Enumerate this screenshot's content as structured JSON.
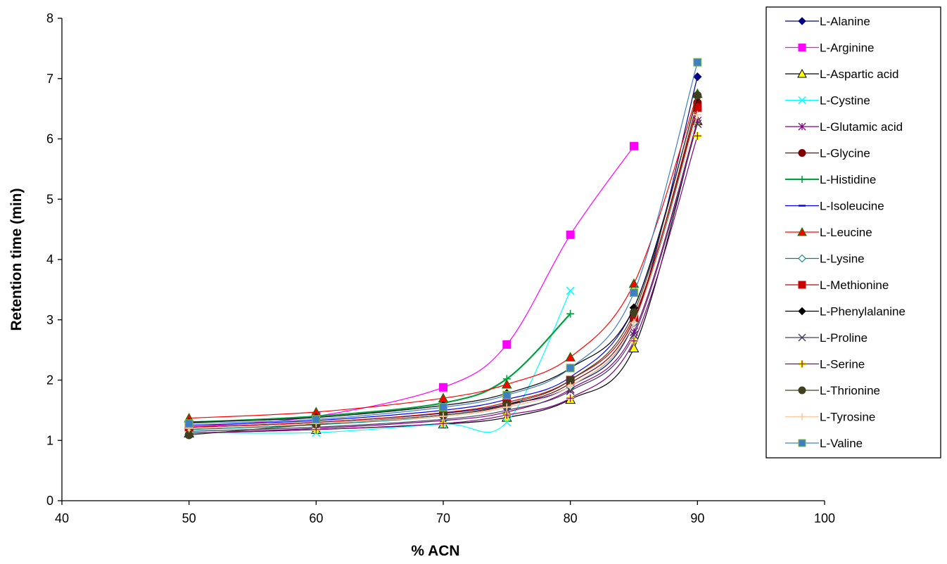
{
  "chart_data": {
    "type": "line",
    "title": "",
    "xlabel": "% ACN",
    "ylabel": "Retention time (min)",
    "xlim": [
      40,
      100
    ],
    "ylim": [
      0,
      8
    ],
    "x_ticks": [
      "40",
      "50",
      "60",
      "70",
      "80",
      "90",
      "100"
    ],
    "y_ticks": [
      "0",
      "1",
      "2",
      "3",
      "4",
      "5",
      "6",
      "7",
      "8"
    ],
    "grid": false,
    "legend_position": "right",
    "series": [
      {
        "name": "L-Alanine",
        "color": "#000080",
        "marker": "diamond",
        "x": [
          50,
          60,
          70,
          75,
          80,
          85,
          90
        ],
        "y": [
          1.22,
          1.3,
          1.45,
          1.6,
          1.9,
          2.95,
          7.03
        ]
      },
      {
        "name": "L-Arginine",
        "color": "#FF00FF",
        "marker": "square",
        "x": [
          50,
          60,
          70,
          75,
          80,
          85
        ],
        "y": [
          1.22,
          1.4,
          1.88,
          2.59,
          4.41,
          5.88
        ]
      },
      {
        "name": "L-Aspartic acid",
        "color": "#FFFF00",
        "stroke": "#000000",
        "marker": "triangle",
        "x": [
          50,
          60,
          70,
          75,
          80,
          85,
          90
        ],
        "y": [
          1.12,
          1.18,
          1.27,
          1.38,
          1.68,
          2.53,
          6.3
        ]
      },
      {
        "name": "L-Cystine",
        "color": "#00FFFF",
        "marker": "x",
        "x": [
          50,
          60,
          70,
          75,
          80
        ],
        "y": [
          1.13,
          1.13,
          1.27,
          1.3,
          3.48
        ]
      },
      {
        "name": "L-Glutamic acid",
        "color": "#800080",
        "marker": "asterisk",
        "x": [
          50,
          60,
          70,
          75,
          80,
          85,
          90
        ],
        "y": [
          1.12,
          1.2,
          1.33,
          1.47,
          1.85,
          2.8,
          6.3
        ]
      },
      {
        "name": "L-Glycine",
        "color": "#800000",
        "marker": "circle",
        "x": [
          50,
          60,
          70,
          75,
          80,
          85,
          90
        ],
        "y": [
          1.2,
          1.28,
          1.42,
          1.58,
          1.95,
          3.0,
          6.6
        ]
      },
      {
        "name": "L-Histidine",
        "color": "#00A040",
        "marker": "plus",
        "x": [
          50,
          60,
          70,
          75,
          80
        ],
        "y": [
          1.3,
          1.4,
          1.62,
          2.02,
          3.1
        ]
      },
      {
        "name": "L-Isoleucine",
        "color": "#0000FF",
        "marker": "dash",
        "x": [
          50,
          60,
          70,
          75,
          80,
          85,
          90
        ],
        "y": [
          1.25,
          1.33,
          1.5,
          1.68,
          2.05,
          3.2,
          6.7
        ]
      },
      {
        "name": "L-Leucine",
        "color": "#FF0000",
        "stroke": "#008000",
        "marker": "triangle",
        "x": [
          50,
          60,
          70,
          75,
          80,
          85,
          90
        ],
        "y": [
          1.37,
          1.47,
          1.7,
          1.93,
          2.38,
          3.6,
          6.75
        ]
      },
      {
        "name": "L-Lysine",
        "color": "#FFFFFF",
        "stroke": "#008080",
        "marker": "diamond",
        "x": [
          50,
          60,
          70,
          75,
          80,
          85,
          90
        ],
        "y": [
          1.18,
          1.26,
          1.4,
          1.55,
          1.9,
          2.95,
          6.5
        ]
      },
      {
        "name": "L-Methionine",
        "color": "#CC0000",
        "marker": "square",
        "x": [
          50,
          60,
          70,
          75,
          80,
          85,
          90
        ],
        "y": [
          1.22,
          1.3,
          1.46,
          1.63,
          2.0,
          3.05,
          6.52
        ]
      },
      {
        "name": "L-Phenylalanine",
        "color": "#000000",
        "marker": "diamond",
        "x": [
          50,
          60,
          70,
          75,
          80,
          85,
          90
        ],
        "y": [
          1.3,
          1.38,
          1.58,
          1.78,
          2.2,
          3.2,
          6.7
        ]
      },
      {
        "name": "L-Proline",
        "color": "#404060",
        "marker": "x",
        "x": [
          50,
          60,
          70,
          75,
          80,
          85,
          90
        ],
        "y": [
          1.15,
          1.22,
          1.35,
          1.5,
          1.82,
          2.75,
          6.25
        ]
      },
      {
        "name": "L-Serine",
        "color": "#FFFF00",
        "stroke": "#800080",
        "marker": "plus",
        "x": [
          50,
          60,
          70,
          75,
          80,
          85,
          90
        ],
        "y": [
          1.12,
          1.18,
          1.28,
          1.42,
          1.7,
          2.65,
          6.05
        ]
      },
      {
        "name": "L-Thrionine",
        "color": "#404020",
        "marker": "circle",
        "x": [
          50,
          60,
          70,
          75,
          80,
          85,
          90
        ],
        "y": [
          1.09,
          1.27,
          1.42,
          1.6,
          2.0,
          3.12,
          6.72
        ]
      },
      {
        "name": "L-Tyrosine",
        "color": "#FFC8A0",
        "marker": "plus",
        "x": [
          50,
          60,
          70,
          75,
          80,
          85,
          90
        ],
        "y": [
          1.2,
          1.28,
          1.4,
          1.55,
          1.9,
          2.95,
          6.4
        ]
      },
      {
        "name": "L-Valine",
        "color": "#4080C0",
        "stroke": "#80C040",
        "marker": "square",
        "x": [
          50,
          60,
          70,
          75,
          80,
          85,
          90
        ],
        "y": [
          1.28,
          1.35,
          1.55,
          1.75,
          2.2,
          3.45,
          7.27
        ]
      }
    ]
  }
}
